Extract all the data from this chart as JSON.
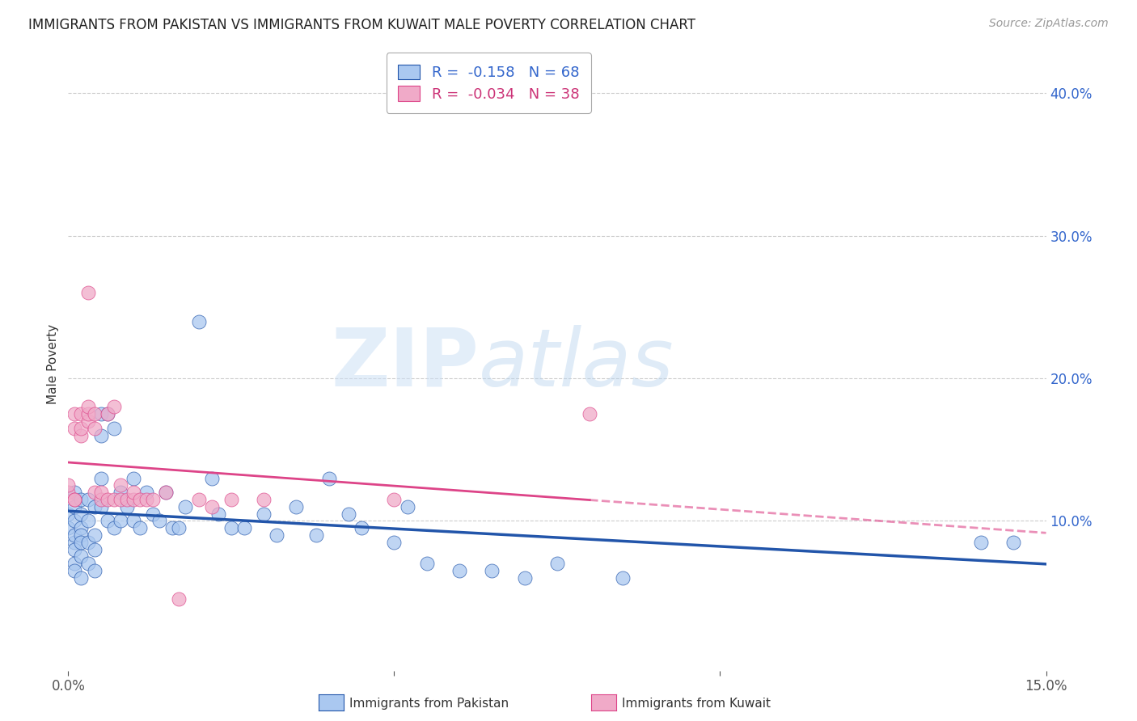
{
  "title": "IMMIGRANTS FROM PAKISTAN VS IMMIGRANTS FROM KUWAIT MALE POVERTY CORRELATION CHART",
  "source": "Source: ZipAtlas.com",
  "ylabel": "Male Poverty",
  "ytick_labels": [
    "10.0%",
    "20.0%",
    "30.0%",
    "40.0%"
  ],
  "ytick_values": [
    0.1,
    0.2,
    0.3,
    0.4
  ],
  "xlim": [
    0.0,
    0.15
  ],
  "ylim": [
    -0.005,
    0.425
  ],
  "legend_pakistan": "R =  -0.158   N = 68",
  "legend_kuwait": "R =  -0.034   N = 38",
  "color_pakistan": "#aac8f0",
  "color_kuwait": "#f0aac8",
  "trendline_pakistan_color": "#2255aa",
  "trendline_kuwait_color": "#dd4488",
  "watermark_zip": "ZIP",
  "watermark_atlas": "atlas",
  "background_color": "#ffffff",
  "grid_color": "#cccccc",
  "pakistan_x": [
    0.0,
    0.0,
    0.001,
    0.001,
    0.001,
    0.001,
    0.001,
    0.001,
    0.001,
    0.001,
    0.002,
    0.002,
    0.002,
    0.002,
    0.002,
    0.002,
    0.002,
    0.003,
    0.003,
    0.003,
    0.003,
    0.004,
    0.004,
    0.004,
    0.004,
    0.005,
    0.005,
    0.005,
    0.005,
    0.006,
    0.006,
    0.007,
    0.007,
    0.008,
    0.008,
    0.009,
    0.01,
    0.01,
    0.011,
    0.012,
    0.013,
    0.014,
    0.015,
    0.016,
    0.017,
    0.018,
    0.02,
    0.022,
    0.023,
    0.025,
    0.027,
    0.03,
    0.032,
    0.035,
    0.038,
    0.04,
    0.043,
    0.045,
    0.05,
    0.052,
    0.055,
    0.06,
    0.065,
    0.07,
    0.075,
    0.085,
    0.14,
    0.145
  ],
  "pakistan_y": [
    0.095,
    0.105,
    0.1,
    0.085,
    0.11,
    0.09,
    0.08,
    0.12,
    0.07,
    0.065,
    0.115,
    0.095,
    0.075,
    0.105,
    0.09,
    0.085,
    0.06,
    0.115,
    0.1,
    0.085,
    0.07,
    0.11,
    0.09,
    0.08,
    0.065,
    0.175,
    0.16,
    0.13,
    0.11,
    0.175,
    0.1,
    0.165,
    0.095,
    0.12,
    0.1,
    0.11,
    0.13,
    0.1,
    0.095,
    0.12,
    0.105,
    0.1,
    0.12,
    0.095,
    0.095,
    0.11,
    0.24,
    0.13,
    0.105,
    0.095,
    0.095,
    0.105,
    0.09,
    0.11,
    0.09,
    0.13,
    0.105,
    0.095,
    0.085,
    0.11,
    0.07,
    0.065,
    0.065,
    0.06,
    0.07,
    0.06,
    0.085,
    0.085
  ],
  "kuwait_x": [
    0.0,
    0.0,
    0.001,
    0.001,
    0.001,
    0.001,
    0.002,
    0.002,
    0.002,
    0.003,
    0.003,
    0.003,
    0.003,
    0.004,
    0.004,
    0.004,
    0.005,
    0.005,
    0.006,
    0.006,
    0.007,
    0.007,
    0.008,
    0.008,
    0.009,
    0.01,
    0.01,
    0.011,
    0.012,
    0.013,
    0.015,
    0.017,
    0.02,
    0.022,
    0.025,
    0.03,
    0.05,
    0.08
  ],
  "kuwait_y": [
    0.12,
    0.125,
    0.115,
    0.175,
    0.165,
    0.115,
    0.16,
    0.175,
    0.165,
    0.17,
    0.175,
    0.18,
    0.26,
    0.175,
    0.165,
    0.12,
    0.115,
    0.12,
    0.115,
    0.175,
    0.18,
    0.115,
    0.125,
    0.115,
    0.115,
    0.115,
    0.12,
    0.115,
    0.115,
    0.115,
    0.12,
    0.045,
    0.115,
    0.11,
    0.115,
    0.115,
    0.115,
    0.175
  ]
}
